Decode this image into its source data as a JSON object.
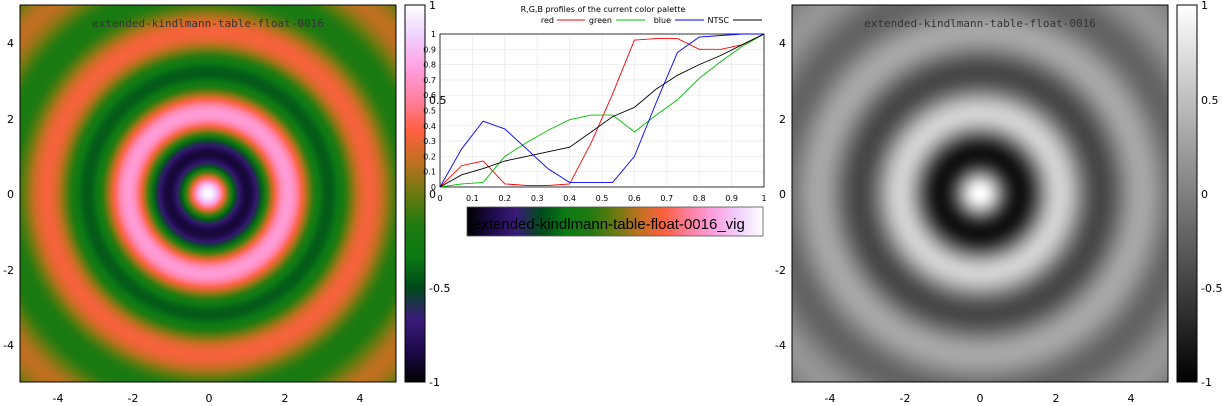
{
  "colors": {
    "red": "#ff0000",
    "green": "#00c000",
    "blue": "#0000ff",
    "ntsc": "#000000",
    "palette_stops": [
      "#000000",
      "#1d0a4a",
      "#3a1b7a",
      "#004a1a",
      "#0b7a14",
      "#1f7a10",
      "#6a7a10",
      "#c07020",
      "#ff6040",
      "#ff80a0",
      "#ffa0e0",
      "#f0d0ff",
      "#ffffff"
    ],
    "gray_stops": [
      "#000000",
      "#ffffff"
    ]
  },
  "chart_data": [
    {
      "type": "heatmap",
      "title": "extended-kindlmann-table-float-0016",
      "xlim": [
        -5,
        5
      ],
      "ylim": [
        -5,
        5
      ],
      "x_ticks": [
        "-4",
        "-2",
        "0",
        "2",
        "4"
      ],
      "y_ticks": [
        "4",
        "2",
        "0",
        "-2",
        "-4"
      ],
      "colorbar": {
        "range": [
          -1,
          1
        ],
        "ticks": [
          "1",
          "0.5",
          "0",
          "-0.5",
          "-1"
        ],
        "scale": "color"
      }
    },
    {
      "type": "line",
      "title": "R,G,B profiles of the current color palette",
      "xlim": [
        0,
        1
      ],
      "ylim": [
        0,
        1
      ],
      "x_ticks": [
        "0",
        "0.1",
        "0.2",
        "0.3",
        "0.4",
        "0.5",
        "0.6",
        "0.7",
        "0.8",
        "0.9",
        "1"
      ],
      "y_ticks": [
        "1",
        "0.9",
        "0.8",
        "0.7",
        "0.6",
        "0.5",
        "0.4",
        "0.3",
        "0.2",
        "0.1",
        "0"
      ],
      "series": [
        {
          "name": "red",
          "x": [
            0,
            0.067,
            0.133,
            0.2,
            0.267,
            0.333,
            0.4,
            0.467,
            0.533,
            0.6,
            0.667,
            0.733,
            0.8,
            0.867,
            0.933,
            1.0
          ],
          "y": [
            0,
            0.14,
            0.17,
            0.02,
            0.01,
            0.01,
            0.02,
            0.29,
            0.61,
            0.96,
            0.97,
            0.97,
            0.9,
            0.9,
            0.93,
            1.0
          ]
        },
        {
          "name": "green",
          "x": [
            0,
            0.067,
            0.133,
            0.2,
            0.267,
            0.333,
            0.4,
            0.467,
            0.533,
            0.6,
            0.667,
            0.733,
            0.8,
            0.867,
            0.933,
            1.0
          ],
          "y": [
            0,
            0.02,
            0.03,
            0.2,
            0.29,
            0.37,
            0.44,
            0.47,
            0.47,
            0.36,
            0.47,
            0.57,
            0.71,
            0.82,
            0.92,
            1.0
          ]
        },
        {
          "name": "blue",
          "x": [
            0,
            0.067,
            0.133,
            0.2,
            0.267,
            0.333,
            0.4,
            0.467,
            0.533,
            0.6,
            0.667,
            0.733,
            0.8,
            0.867,
            0.933,
            1.0
          ],
          "y": [
            0,
            0.25,
            0.43,
            0.38,
            0.25,
            0.12,
            0.03,
            0.03,
            0.03,
            0.2,
            0.55,
            0.88,
            0.98,
            0.99,
            1.0,
            1.0
          ]
        },
        {
          "name": "NTSC",
          "x": [
            0,
            0.067,
            0.133,
            0.2,
            0.267,
            0.333,
            0.4,
            0.467,
            0.533,
            0.6,
            0.667,
            0.733,
            0.8,
            0.867,
            0.933,
            1.0
          ],
          "y": [
            0,
            0.08,
            0.12,
            0.17,
            0.2,
            0.23,
            0.26,
            0.36,
            0.46,
            0.52,
            0.64,
            0.73,
            0.8,
            0.86,
            0.93,
            1.0
          ]
        }
      ],
      "palette_label": "extended-kindlmann-table-float-0016_vig"
    },
    {
      "type": "heatmap",
      "title": "extended-kindlmann-table-float-0016",
      "xlim": [
        -5,
        5
      ],
      "ylim": [
        -5,
        5
      ],
      "x_ticks": [
        "-4",
        "-2",
        "0",
        "2",
        "4"
      ],
      "y_ticks": [
        "4",
        "2",
        "0",
        "-2",
        "-4"
      ],
      "colorbar": {
        "range": [
          -1,
          1
        ],
        "ticks": [
          "1",
          "0.5",
          "0",
          "-0.5",
          "-1"
        ],
        "scale": "gray"
      }
    }
  ]
}
